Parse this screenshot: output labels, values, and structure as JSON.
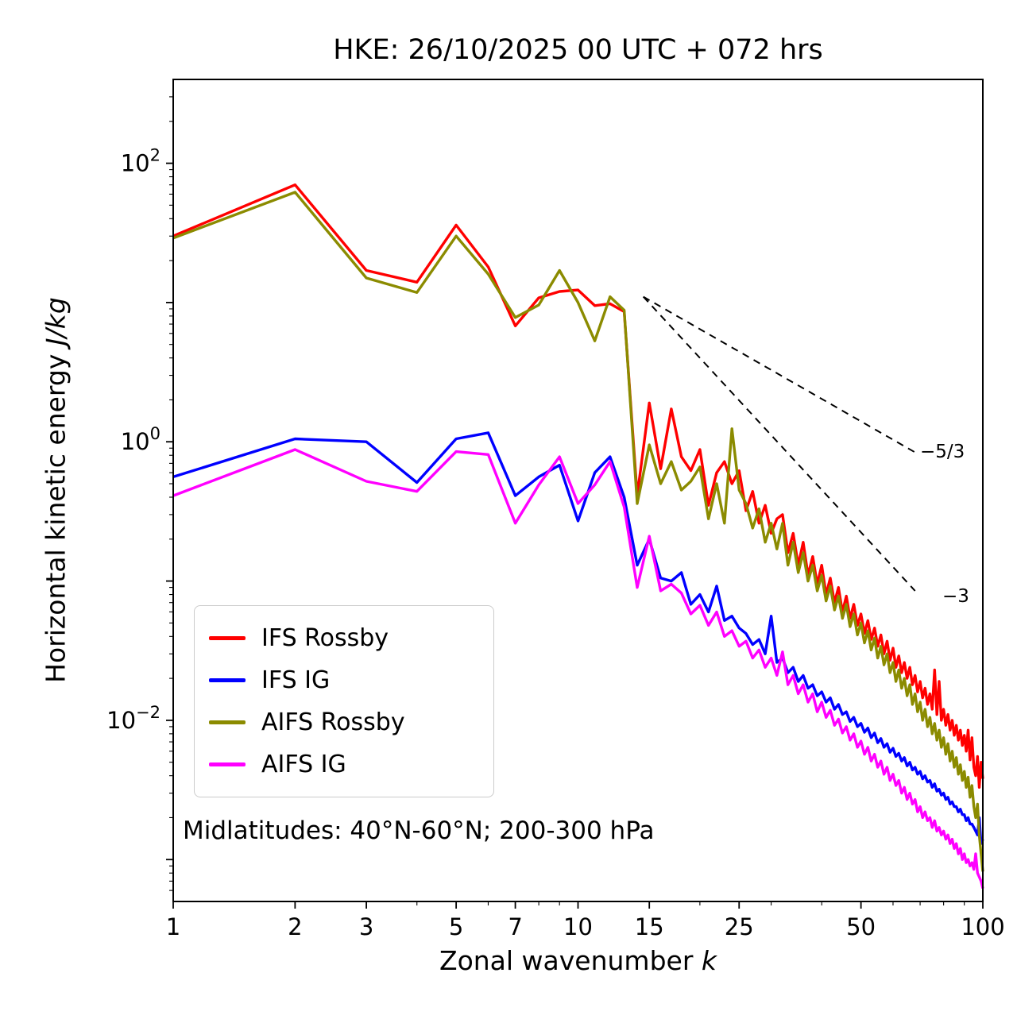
{
  "title": "HKE: 26/10/2025 00 UTC + 072 hrs",
  "labels": {
    "xlabel_prefix": "Zonal wavenumber ",
    "xlabel_var": "k",
    "ylabel_prefix": "Horizontal kinetic energy ",
    "ylabel_var": "J/kg"
  },
  "annotation": "Midlatitudes: 40°N-60°N; 200-300 hPa",
  "chart_data": {
    "type": "line",
    "title": "HKE: 26/10/2025 00 UTC + 072 hrs",
    "xlabel": "Zonal wavenumber k",
    "ylabel": "Horizontal kinetic energy J/kg",
    "x_scale": "log",
    "y_scale": "log",
    "xlim": [
      1,
      100
    ],
    "ylim": [
      0.0005,
      400
    ],
    "grid": false,
    "legend_position": "lower left",
    "x_ticks": [
      1,
      2,
      3,
      5,
      7,
      10,
      15,
      25,
      50,
      100
    ],
    "x_minor_ticks": [
      4,
      6,
      8,
      9,
      20,
      30,
      40,
      60,
      70,
      80,
      90
    ],
    "y_tick_exponents": [
      -2,
      0,
      2
    ],
    "x": [
      1,
      2,
      3,
      4,
      5,
      6,
      7,
      8,
      9,
      10,
      11,
      12,
      13,
      14,
      15,
      16,
      17,
      18,
      19,
      20,
      21,
      22,
      23,
      24,
      25,
      26,
      27,
      28,
      29,
      30,
      31,
      32,
      33,
      34,
      35,
      36,
      37,
      38,
      39,
      40,
      41,
      42,
      43,
      44,
      45,
      46,
      47,
      48,
      49,
      50,
      51,
      52,
      53,
      54,
      55,
      56,
      57,
      58,
      59,
      60,
      61,
      62,
      63,
      64,
      65,
      66,
      67,
      68,
      69,
      70,
      71,
      72,
      73,
      74,
      75,
      76,
      77,
      78,
      79,
      80,
      81,
      82,
      83,
      84,
      85,
      86,
      87,
      88,
      89,
      90,
      91,
      92,
      93,
      94,
      95,
      96,
      97,
      98,
      99,
      100
    ],
    "series": [
      {
        "name": "IFS Rossby",
        "color": "#ff0000",
        "values": [
          30,
          70,
          17,
          14,
          36,
          18,
          6.8,
          10.8,
          12,
          12.3,
          9.5,
          9.8,
          8.6,
          0.41,
          1.9,
          0.64,
          1.72,
          0.78,
          0.62,
          0.88,
          0.35,
          0.6,
          0.72,
          0.5,
          0.62,
          0.32,
          0.44,
          0.26,
          0.35,
          0.22,
          0.28,
          0.3,
          0.16,
          0.22,
          0.13,
          0.19,
          0.11,
          0.15,
          0.095,
          0.13,
          0.08,
          0.105,
          0.07,
          0.09,
          0.06,
          0.078,
          0.054,
          0.068,
          0.048,
          0.058,
          0.042,
          0.052,
          0.038,
          0.046,
          0.034,
          0.041,
          0.03,
          0.037,
          0.027,
          0.033,
          0.024,
          0.029,
          0.022,
          0.026,
          0.02,
          0.024,
          0.018,
          0.021,
          0.016,
          0.019,
          0.0145,
          0.017,
          0.013,
          0.0155,
          0.012,
          0.023,
          0.011,
          0.019,
          0.01,
          0.012,
          0.0092,
          0.011,
          0.0085,
          0.01,
          0.0078,
          0.0092,
          0.0072,
          0.0085,
          0.0066,
          0.0078,
          0.006,
          0.0085,
          0.0052,
          0.0075,
          0.0046,
          0.004,
          0.0055,
          0.0033,
          0.005,
          0.0038
        ]
      },
      {
        "name": "IFS IG",
        "color": "#0000ff",
        "values": [
          0.56,
          1.05,
          1.0,
          0.51,
          1.05,
          1.16,
          0.41,
          0.56,
          0.68,
          0.27,
          0.6,
          0.78,
          0.4,
          0.13,
          0.2,
          0.105,
          0.1,
          0.115,
          0.068,
          0.08,
          0.06,
          0.092,
          0.052,
          0.056,
          0.046,
          0.042,
          0.035,
          0.038,
          0.03,
          0.056,
          0.026,
          0.028,
          0.022,
          0.024,
          0.019,
          0.021,
          0.017,
          0.018,
          0.015,
          0.016,
          0.0135,
          0.0145,
          0.012,
          0.013,
          0.011,
          0.0115,
          0.0098,
          0.0105,
          0.009,
          0.0095,
          0.0082,
          0.0088,
          0.0075,
          0.0081,
          0.0069,
          0.0074,
          0.0064,
          0.0068,
          0.0059,
          0.0063,
          0.0055,
          0.0058,
          0.0051,
          0.0054,
          0.0047,
          0.005,
          0.0044,
          0.0046,
          0.0041,
          0.0043,
          0.0038,
          0.004,
          0.0036,
          0.0037,
          0.0033,
          0.0035,
          0.0031,
          0.0032,
          0.0029,
          0.003,
          0.0027,
          0.0028,
          0.0025,
          0.0026,
          0.0024,
          0.0024,
          0.0022,
          0.0023,
          0.0021,
          0.0021,
          0.0019,
          0.002,
          0.0018,
          0.0018,
          0.0017,
          0.0016,
          0.0015,
          0.002,
          0.0013,
          0.0014
        ]
      },
      {
        "name": "AIFS Rossby",
        "color": "#8b8b00",
        "values": [
          29,
          62,
          15,
          11.8,
          30,
          16,
          7.8,
          9.6,
          17,
          10,
          5.3,
          11,
          8.8,
          0.36,
          0.95,
          0.5,
          0.72,
          0.45,
          0.52,
          0.66,
          0.28,
          0.5,
          0.26,
          1.24,
          0.45,
          0.36,
          0.24,
          0.33,
          0.19,
          0.26,
          0.17,
          0.26,
          0.13,
          0.19,
          0.115,
          0.16,
          0.1,
          0.13,
          0.085,
          0.11,
          0.072,
          0.092,
          0.062,
          0.078,
          0.054,
          0.068,
          0.047,
          0.058,
          0.041,
          0.05,
          0.036,
          0.044,
          0.032,
          0.039,
          0.028,
          0.034,
          0.025,
          0.03,
          0.022,
          0.026,
          0.019,
          0.023,
          0.017,
          0.02,
          0.015,
          0.018,
          0.013,
          0.0155,
          0.0115,
          0.0135,
          0.01,
          0.012,
          0.009,
          0.0105,
          0.008,
          0.0095,
          0.0072,
          0.0085,
          0.0064,
          0.0075,
          0.0057,
          0.0068,
          0.0051,
          0.006,
          0.0046,
          0.0054,
          0.0041,
          0.0048,
          0.0037,
          0.0043,
          0.0033,
          0.0039,
          0.0028,
          0.0034,
          0.0024,
          0.002,
          0.0025,
          0.0015,
          0.0011,
          0.00082
        ]
      },
      {
        "name": "AIFS IG",
        "color": "#ff00ff",
        "values": [
          0.41,
          0.88,
          0.52,
          0.44,
          0.85,
          0.81,
          0.26,
          0.49,
          0.78,
          0.36,
          0.49,
          0.72,
          0.34,
          0.09,
          0.21,
          0.085,
          0.095,
          0.082,
          0.058,
          0.067,
          0.048,
          0.06,
          0.04,
          0.044,
          0.034,
          0.037,
          0.028,
          0.032,
          0.024,
          0.028,
          0.021,
          0.031,
          0.018,
          0.021,
          0.0155,
          0.018,
          0.0135,
          0.0155,
          0.0115,
          0.0135,
          0.0105,
          0.0118,
          0.0092,
          0.0102,
          0.0081,
          0.009,
          0.0072,
          0.008,
          0.0064,
          0.0071,
          0.0057,
          0.0064,
          0.0051,
          0.0057,
          0.0046,
          0.0051,
          0.0041,
          0.0046,
          0.0037,
          0.0041,
          0.0034,
          0.0037,
          0.003,
          0.0033,
          0.0027,
          0.003,
          0.0025,
          0.0027,
          0.0022,
          0.0024,
          0.002,
          0.0022,
          0.0019,
          0.002,
          0.0017,
          0.0019,
          0.0016,
          0.0017,
          0.0015,
          0.0016,
          0.0014,
          0.0015,
          0.0013,
          0.0014,
          0.0012,
          0.0013,
          0.0011,
          0.0012,
          0.001,
          0.0011,
          0.00095,
          0.001,
          0.0009,
          0.00095,
          0.00085,
          0.0011,
          0.0008,
          0.00075,
          0.0007,
          0.00062
        ]
      }
    ],
    "reference_lines": [
      {
        "label": "−5/3",
        "x": [
          14.5,
          68
        ],
        "y": [
          11,
          0.84
        ],
        "style": "dashed",
        "color": "#000000"
      },
      {
        "label": "−3",
        "x": [
          14.5,
          68
        ],
        "y": [
          11,
          0.085
        ],
        "style": "dashed",
        "color": "#000000"
      }
    ]
  }
}
